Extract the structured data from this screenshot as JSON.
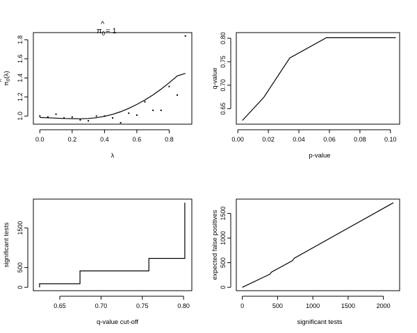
{
  "chart_data": [
    {
      "id": "pi0",
      "type": "scatter",
      "title_main": "π",
      "title_hat": "^",
      "title_sub": "0",
      "title_rest": "= 1",
      "xlabel": "λ",
      "ylabel_main": "π",
      "ylabel_hat": "^",
      "ylabel_sub": "0",
      "ylabel_rest": "(λ)",
      "xlim": [
        -0.04,
        0.94
      ],
      "ylim": [
        0.915,
        1.875
      ],
      "xticks": [
        0,
        0.2,
        0.4,
        0.6,
        0.8
      ],
      "xtick_labels": [
        "0.0",
        "0.2",
        "0.4",
        "0.6",
        "0.8"
      ],
      "yticks": [
        1.0,
        1.2,
        1.4,
        1.6,
        1.8
      ],
      "ytick_labels": [
        "1.0",
        "1.2",
        "1.4",
        "1.6",
        "1.8"
      ],
      "points": {
        "x": [
          0.0,
          0.05,
          0.1,
          0.15,
          0.2,
          0.25,
          0.3,
          0.35,
          0.4,
          0.45,
          0.5,
          0.55,
          0.6,
          0.65,
          0.7,
          0.75,
          0.8,
          0.85,
          0.9
        ],
        "y": [
          1.0,
          0.99,
          1.02,
          0.98,
          0.99,
          0.96,
          0.95,
          1.0,
          1.0,
          0.98,
          0.93,
          1.03,
          1.01,
          1.15,
          1.06,
          1.06,
          1.31,
          1.22,
          1.84
        ]
      },
      "fit_line": {
        "x": [
          0.0,
          0.05,
          0.1,
          0.15,
          0.2,
          0.25,
          0.3,
          0.35,
          0.4,
          0.45,
          0.5,
          0.55,
          0.6,
          0.65,
          0.7,
          0.75,
          0.8,
          0.85,
          0.9
        ],
        "y": [
          0.985,
          0.982,
          0.978,
          0.975,
          0.973,
          0.972,
          0.975,
          0.983,
          0.997,
          1.018,
          1.046,
          1.081,
          1.122,
          1.169,
          1.222,
          1.282,
          1.349,
          1.421,
          1.447
        ]
      }
    },
    {
      "id": "qvp",
      "type": "line",
      "xlabel": "p-value",
      "ylabel": "q-value",
      "xlim": [
        -0.001,
        0.106
      ],
      "ylim": [
        0.617,
        0.812
      ],
      "xticks": [
        0.0,
        0.02,
        0.04,
        0.06,
        0.08,
        0.1
      ],
      "xtick_labels": [
        "0.00",
        "0.02",
        "0.04",
        "0.06",
        "0.08",
        "0.10"
      ],
      "yticks": [
        0.65,
        0.7,
        0.75,
        0.8
      ],
      "ytick_labels": [
        "0.65",
        "0.70",
        "0.75",
        "0.80"
      ],
      "x": [
        0.003,
        0.017,
        0.034,
        0.058,
        0.1035
      ],
      "y": [
        0.625,
        0.674,
        0.758,
        0.801,
        0.801
      ]
    },
    {
      "id": "sig",
      "type": "line",
      "step": true,
      "xlabel": "q-value cut-off",
      "ylabel": "significant tests",
      "xlim": [
        0.618,
        0.81
      ],
      "ylim": [
        -85,
        2230
      ],
      "xticks": [
        0.65,
        0.7,
        0.75,
        0.8
      ],
      "xtick_labels": [
        "0.65",
        "0.70",
        "0.75",
        "0.80"
      ],
      "yticks": [
        0,
        500,
        1500
      ],
      "ytick_labels": [
        "0",
        "500",
        "1500"
      ],
      "x": [
        0.6255,
        0.6255,
        0.6745,
        0.6745,
        0.758,
        0.758,
        0.8015,
        0.8015
      ],
      "y": [
        0,
        90,
        90,
        415,
        415,
        730,
        730,
        2140
      ]
    },
    {
      "id": "efp",
      "type": "line",
      "xlabel": "significant tests",
      "ylabel": "expected false positives",
      "xlim": [
        -85,
        2230
      ],
      "ylim": [
        -68,
        1790
      ],
      "xticks": [
        0,
        500,
        1000,
        1500,
        2000
      ],
      "xtick_labels": [
        "0",
        "500",
        "1000",
        "1500",
        "2000"
      ],
      "yticks": [
        0,
        500,
        1000,
        1500
      ],
      "ytick_labels": [
        "0",
        "500",
        "1000",
        "1500"
      ],
      "x": [
        0,
        390,
        415,
        710,
        735,
        2140
      ],
      "y": [
        0,
        265,
        310,
        540,
        590,
        1715
      ]
    }
  ]
}
